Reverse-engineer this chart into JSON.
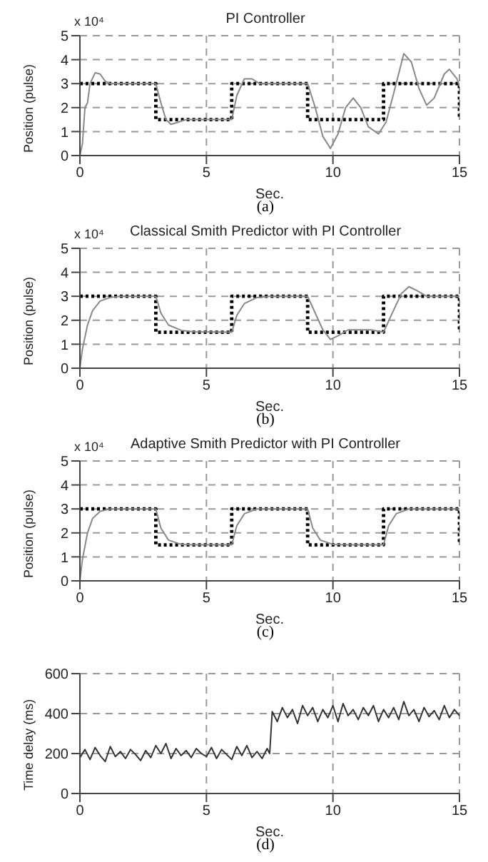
{
  "chart_data": [
    {
      "type": "line",
      "title": "PI Controller",
      "xlabel": "Sec.",
      "ylabel": "Position (pulse)",
      "xlim": [
        0,
        15
      ],
      "ylim": [
        0,
        5
      ],
      "xticks": [
        0,
        5,
        10,
        15
      ],
      "yticks": [
        0,
        1,
        2,
        3,
        4,
        5
      ],
      "grid": true,
      "annotations": [
        "x 10⁴",
        "(a)"
      ],
      "series": [
        {
          "type": "step",
          "color": "#000000",
          "line_style": "dotted",
          "x": [
            0,
            3,
            6,
            9,
            12,
            15
          ],
          "values": [
            3,
            1.5,
            3,
            1.5,
            3,
            1.5
          ]
        },
        {
          "type": "line",
          "color": "#888888",
          "line_style": "solid",
          "x": [
            0,
            0.1,
            0.2,
            0.3,
            0.4,
            0.6,
            0.8,
            1.0,
            1.2,
            3.0,
            3.2,
            3.4,
            3.6,
            3.9,
            4.2,
            6.0,
            6.2,
            6.5,
            6.8,
            7.1,
            9.0,
            9.3,
            9.6,
            9.9,
            10.2,
            10.5,
            10.8,
            11.1,
            11.4,
            11.8,
            12.1,
            12.4,
            12.8,
            13.1,
            13.4,
            13.7,
            14.0,
            14.4,
            14.6,
            14.9,
            15
          ],
          "values": [
            0,
            0.5,
            2,
            2.2,
            3,
            3.45,
            3.4,
            3.1,
            3.0,
            3.0,
            2.2,
            1.5,
            1.3,
            1.4,
            1.5,
            1.5,
            2.5,
            3.2,
            3.2,
            3.0,
            3.0,
            2.0,
            0.8,
            0.3,
            0.9,
            2.0,
            2.4,
            2.0,
            1.2,
            0.9,
            1.4,
            2.6,
            4.25,
            3.9,
            2.8,
            2.1,
            2.4,
            3.4,
            3.6,
            3.2,
            2.9
          ]
        }
      ]
    },
    {
      "type": "line",
      "title": "Classical Smith Predictor with PI Controller",
      "xlabel": "Sec.",
      "ylabel": "Position (pulse)",
      "xlim": [
        0,
        15
      ],
      "ylim": [
        0,
        5
      ],
      "xticks": [
        0,
        5,
        10,
        15
      ],
      "yticks": [
        0,
        1,
        2,
        3,
        4,
        5
      ],
      "grid": true,
      "annotations": [
        "x 10⁴",
        "(b)"
      ],
      "series": [
        {
          "type": "step",
          "color": "#000000",
          "line_style": "dotted",
          "x": [
            0,
            3,
            6,
            9,
            12,
            15
          ],
          "values": [
            3,
            1.5,
            3,
            1.5,
            3,
            1.5
          ]
        },
        {
          "type": "line",
          "color": "#888888",
          "line_style": "solid",
          "x": [
            0,
            0.1,
            0.3,
            0.5,
            0.8,
            1.2,
            1.6,
            3.0,
            3.2,
            3.5,
            4.0,
            4.5,
            6.0,
            6.2,
            6.5,
            7.0,
            7.5,
            9.0,
            9.3,
            9.6,
            9.9,
            10.2,
            10.6,
            11.5,
            12.0,
            12.3,
            12.7,
            13.0,
            13.3,
            13.7,
            15
          ],
          "values": [
            0,
            0.8,
            1.8,
            2.4,
            2.8,
            2.95,
            3.0,
            3.0,
            2.3,
            1.8,
            1.58,
            1.52,
            1.5,
            2.2,
            2.7,
            2.95,
            3.0,
            3.0,
            2.3,
            1.6,
            1.2,
            1.35,
            1.6,
            1.6,
            1.5,
            2.2,
            3.1,
            3.4,
            3.25,
            3.0,
            3.0
          ]
        }
      ]
    },
    {
      "type": "line",
      "title": "Adaptive Smith Predictor with PI Controller",
      "xlabel": "Sec.",
      "ylabel": "Position (pulse)",
      "xlim": [
        0,
        15
      ],
      "ylim": [
        0,
        5
      ],
      "xticks": [
        0,
        5,
        10,
        15
      ],
      "yticks": [
        0,
        1,
        2,
        3,
        4,
        5
      ],
      "grid": true,
      "annotations": [
        "x 10⁴",
        "(c)"
      ],
      "series": [
        {
          "type": "step",
          "color": "#000000",
          "line_style": "dotted",
          "x": [
            0,
            3,
            6,
            9,
            12,
            15
          ],
          "values": [
            3,
            1.5,
            3,
            1.5,
            3,
            1.5
          ]
        },
        {
          "type": "line",
          "color": "#888888",
          "line_style": "solid",
          "x": [
            0,
            0.1,
            0.3,
            0.5,
            0.8,
            1.2,
            3.0,
            3.2,
            3.5,
            4.0,
            4.5,
            6.0,
            6.2,
            6.5,
            7.0,
            9.0,
            9.2,
            9.5,
            10.0,
            10.5,
            12.0,
            12.2,
            12.5,
            13.0,
            15
          ],
          "values": [
            0,
            0.9,
            2.0,
            2.6,
            2.9,
            3.0,
            3.0,
            2.2,
            1.7,
            1.52,
            1.5,
            1.5,
            2.3,
            2.8,
            3.0,
            3.0,
            2.2,
            1.7,
            1.52,
            1.5,
            1.5,
            2.3,
            2.8,
            3.0,
            3.0
          ]
        }
      ]
    },
    {
      "type": "line",
      "xlabel": "Sec.",
      "ylabel": "Time delay (ms)",
      "xlim": [
        0,
        15
      ],
      "ylim": [
        0,
        600
      ],
      "xticks": [
        0,
        5,
        10,
        15
      ],
      "yticks": [
        0,
        200,
        400,
        600
      ],
      "grid": true,
      "annotations": [
        "(d)"
      ],
      "series": [
        {
          "type": "line",
          "color": "#333333",
          "line_style": "solid",
          "x": [
            0,
            0.2,
            0.4,
            0.6,
            0.8,
            1.0,
            1.2,
            1.4,
            1.6,
            1.8,
            2.0,
            2.2,
            2.4,
            2.6,
            2.8,
            3.0,
            3.2,
            3.4,
            3.6,
            3.8,
            4.0,
            4.2,
            4.4,
            4.6,
            4.8,
            5.0,
            5.2,
            5.4,
            5.6,
            5.8,
            6.0,
            6.2,
            6.4,
            6.6,
            6.8,
            7.0,
            7.2,
            7.4,
            7.5,
            7.6,
            7.8,
            8.0,
            8.2,
            8.4,
            8.6,
            8.8,
            9.0,
            9.2,
            9.4,
            9.6,
            9.8,
            10.0,
            10.2,
            10.4,
            10.6,
            10.8,
            11.0,
            11.2,
            11.4,
            11.6,
            11.8,
            12.0,
            12.2,
            12.4,
            12.6,
            12.8,
            13.0,
            13.2,
            13.4,
            13.6,
            13.8,
            14.0,
            14.2,
            14.4,
            14.6,
            14.8,
            15
          ],
          "values": [
            180,
            220,
            170,
            230,
            190,
            160,
            235,
            185,
            210,
            175,
            220,
            195,
            165,
            215,
            180,
            240,
            200,
            250,
            175,
            225,
            190,
            215,
            180,
            225,
            200,
            185,
            230,
            175,
            220,
            195,
            170,
            235,
            190,
            240,
            180,
            210,
            175,
            225,
            200,
            410,
            360,
            430,
            380,
            420,
            350,
            440,
            390,
            430,
            360,
            420,
            380,
            440,
            360,
            450,
            390,
            420,
            370,
            430,
            390,
            440,
            360,
            420,
            380,
            430,
            370,
            460,
            390,
            420,
            360,
            430,
            385,
            415,
            370,
            440,
            380,
            420,
            390
          ]
        }
      ]
    }
  ]
}
